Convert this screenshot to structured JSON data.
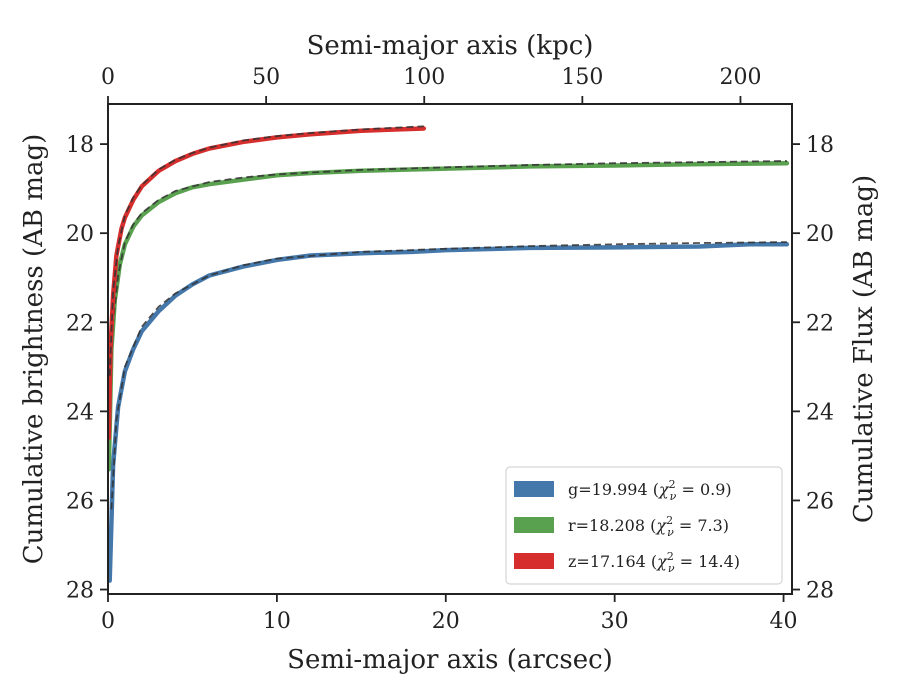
{
  "chart_data": {
    "type": "line",
    "xlabel": "Semi-major axis (arcsec)",
    "ylabel": "Cumulative brightness (AB mag)",
    "xlabel_top": "Semi-major axis (kpc)",
    "ylabel_right": "Cumulative Flux (AB mag)",
    "xlim": [
      0,
      40.5
    ],
    "ylim": [
      28.1,
      17.1
    ],
    "y_inverted": true,
    "xlim_top": [
      0,
      216.3
    ],
    "xticks": [
      0,
      10,
      20,
      30,
      40
    ],
    "yticks": [
      18,
      20,
      22,
      24,
      26,
      28
    ],
    "xticks_top": [
      0,
      50,
      100,
      150,
      200
    ],
    "grid": false,
    "legend_position": "lower right",
    "series": [
      {
        "name": "g=19.994",
        "chi2_label": "0.9",
        "color": "#4477aa",
        "x": [
          0.1,
          0.3,
          0.6,
          1.0,
          1.5,
          2.0,
          3.0,
          4.0,
          5.0,
          6.0,
          8.0,
          10.0,
          12.0,
          15.0,
          18.0,
          20.0,
          25.0,
          30.0,
          35.0,
          38.0,
          40.2
        ],
        "y": [
          27.8,
          25.2,
          23.9,
          23.1,
          22.6,
          22.2,
          21.75,
          21.4,
          21.15,
          20.95,
          20.75,
          20.6,
          20.5,
          20.45,
          20.42,
          20.38,
          20.33,
          20.32,
          20.3,
          20.25,
          20.25
        ],
        "fit_x": [
          0.2,
          0.5,
          1.0,
          2.0,
          3.0,
          4.0,
          6.0,
          8.0,
          10.0,
          15.0,
          20.0,
          25.0,
          30.0,
          35.0,
          40.2
        ],
        "fit_y": [
          26.2,
          24.2,
          23.0,
          22.1,
          21.65,
          21.35,
          20.95,
          20.72,
          20.57,
          20.42,
          20.35,
          20.29,
          20.25,
          20.22,
          20.2
        ]
      },
      {
        "name": "r=18.208",
        "chi2_label": "7.3",
        "color": "#59a14f",
        "x": [
          0.05,
          0.2,
          0.4,
          0.7,
          1.0,
          1.5,
          2.0,
          3.0,
          4.0,
          5.0,
          6.0,
          8.0,
          10.0,
          12.0,
          15.0,
          20.0,
          25.0,
          30.0,
          35.0,
          40.2
        ],
        "y": [
          25.3,
          22.6,
          21.5,
          20.7,
          20.25,
          19.85,
          19.6,
          19.3,
          19.1,
          18.97,
          18.9,
          18.8,
          18.7,
          18.65,
          18.6,
          18.55,
          18.5,
          18.48,
          18.45,
          18.43
        ],
        "fit_x": [
          0.1,
          0.3,
          0.6,
          1.0,
          1.5,
          2.0,
          3.0,
          4.0,
          6.0,
          8.0,
          10.0,
          15.0,
          20.0,
          25.0,
          30.0,
          40.2
        ],
        "fit_y": [
          23.8,
          22.0,
          20.95,
          20.2,
          19.8,
          19.55,
          19.25,
          19.05,
          18.85,
          18.75,
          18.68,
          18.58,
          18.52,
          18.47,
          18.43,
          18.38
        ]
      },
      {
        "name": "z=17.164",
        "chi2_label": "14.4",
        "color": "#d62d2d",
        "x": [
          0.05,
          0.15,
          0.3,
          0.5,
          0.8,
          1.0,
          1.5,
          2.0,
          3.0,
          4.0,
          5.0,
          6.0,
          8.0,
          10.0,
          12.0,
          15.0,
          18.7
        ],
        "y": [
          24.6,
          22.6,
          21.4,
          20.5,
          19.9,
          19.65,
          19.25,
          18.95,
          18.6,
          18.38,
          18.22,
          18.1,
          17.95,
          17.85,
          17.78,
          17.7,
          17.65
        ],
        "fit_x": [
          0.1,
          0.3,
          0.6,
          1.0,
          1.5,
          2.0,
          3.0,
          4.0,
          5.0,
          6.0,
          8.0,
          10.0,
          12.0,
          15.0,
          18.7
        ],
        "fit_y": [
          23.2,
          21.3,
          20.3,
          19.6,
          19.2,
          18.92,
          18.57,
          18.35,
          18.2,
          18.08,
          17.92,
          17.82,
          17.75,
          17.67,
          17.6
        ]
      }
    ]
  }
}
